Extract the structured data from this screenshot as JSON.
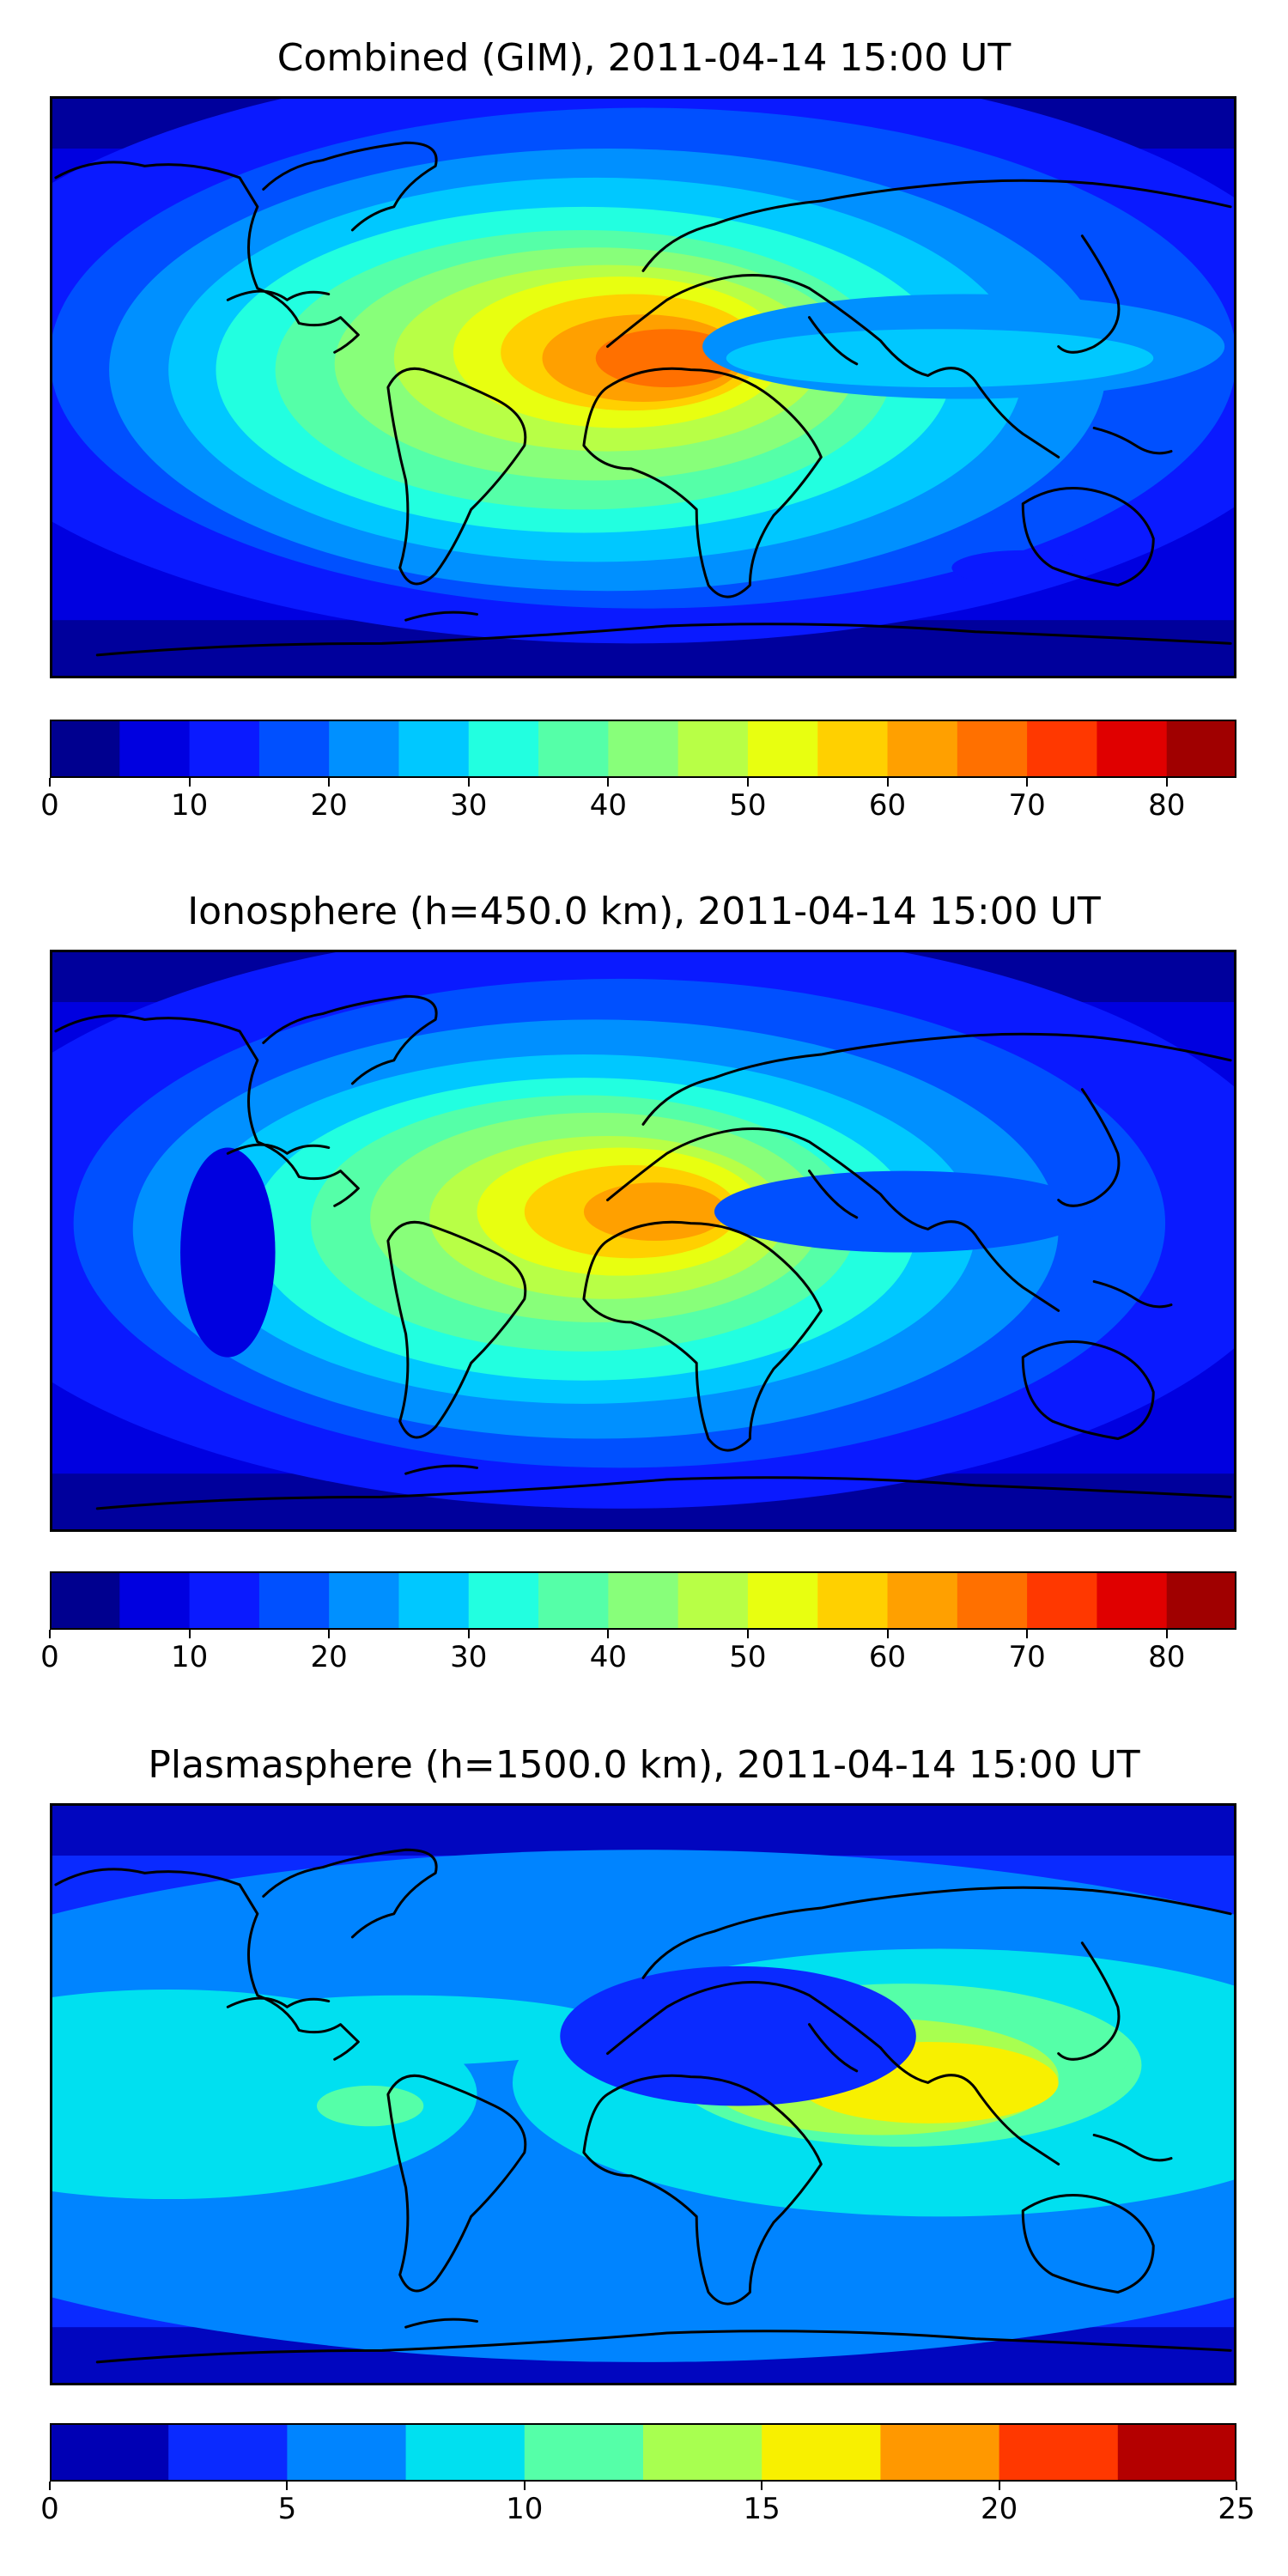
{
  "chart_data": [
    {
      "type": "heatmap",
      "title": "Combined (GIM), 2011-04-14 15:00 UT",
      "colorbar": {
        "min": 0,
        "max": 85,
        "step": 5,
        "tick_labels": [
          "0",
          "10",
          "20",
          "30",
          "40",
          "50",
          "60",
          "70",
          "80"
        ],
        "tick_values": [
          0,
          10,
          20,
          30,
          40,
          50,
          60,
          70,
          80
        ],
        "colors": [
          "#00008f",
          "#0000e0",
          "#0a1aff",
          "#0050ff",
          "#0090ff",
          "#00c8ff",
          "#22ffe0",
          "#55ffa8",
          "#88ff7a",
          "#b8ff46",
          "#e8ff10",
          "#ffd000",
          "#ffa000",
          "#ff7000",
          "#ff3800",
          "#e00000",
          "#a00000"
        ]
      },
      "background_level": 1,
      "blobs": [
        {
          "cx": 0.49,
          "cy": 0.44,
          "rx": 0.6,
          "ry": 0.5,
          "level": 2
        },
        {
          "cx": 0.5,
          "cy": 0.45,
          "rx": 0.5,
          "ry": 0.43,
          "level": 3
        },
        {
          "cx": 0.47,
          "cy": 0.47,
          "rx": 0.42,
          "ry": 0.38,
          "level": 4
        },
        {
          "cx": 0.46,
          "cy": 0.47,
          "rx": 0.36,
          "ry": 0.33,
          "level": 5
        },
        {
          "cx": 0.45,
          "cy": 0.47,
          "rx": 0.31,
          "ry": 0.28,
          "level": 6
        },
        {
          "cx": 0.45,
          "cy": 0.47,
          "rx": 0.26,
          "ry": 0.24,
          "level": 7
        },
        {
          "cx": 0.46,
          "cy": 0.46,
          "rx": 0.22,
          "ry": 0.2,
          "level": 8
        },
        {
          "cx": 0.47,
          "cy": 0.45,
          "rx": 0.18,
          "ry": 0.16,
          "level": 9
        },
        {
          "cx": 0.48,
          "cy": 0.44,
          "rx": 0.14,
          "ry": 0.13,
          "level": 10
        },
        {
          "cx": 0.49,
          "cy": 0.44,
          "rx": 0.11,
          "ry": 0.1,
          "level": 11
        },
        {
          "cx": 0.5,
          "cy": 0.45,
          "rx": 0.085,
          "ry": 0.075,
          "level": 12
        },
        {
          "cx": 0.52,
          "cy": 0.45,
          "rx": 0.06,
          "ry": 0.05,
          "level": 13
        },
        {
          "cx": 0.77,
          "cy": 0.43,
          "rx": 0.22,
          "ry": 0.09,
          "level": 4
        },
        {
          "cx": 0.75,
          "cy": 0.45,
          "rx": 0.18,
          "ry": 0.05,
          "level": 5
        },
        {
          "cx": 0.82,
          "cy": 0.81,
          "rx": 0.06,
          "ry": 0.03,
          "level": 2
        }
      ]
    },
    {
      "type": "heatmap",
      "title": "Ionosphere  (h=450.0 km), 2011-04-14 15:00 UT",
      "colorbar": {
        "min": 0,
        "max": 85,
        "step": 5,
        "tick_labels": [
          "0",
          "10",
          "20",
          "30",
          "40",
          "50",
          "60",
          "70",
          "80"
        ],
        "tick_values": [
          0,
          10,
          20,
          30,
          40,
          50,
          60,
          70,
          80
        ],
        "colors": [
          "#00008f",
          "#0000e0",
          "#0a1aff",
          "#0050ff",
          "#0090ff",
          "#00c8ff",
          "#22ffe0",
          "#55ffa8",
          "#88ff7a",
          "#b8ff46",
          "#e8ff10",
          "#ffd000",
          "#ffa000",
          "#ff7000",
          "#ff3800",
          "#e00000",
          "#a00000"
        ]
      },
      "background_level": 1,
      "blobs": [
        {
          "cx": 0.48,
          "cy": 0.46,
          "rx": 0.58,
          "ry": 0.5,
          "level": 2
        },
        {
          "cx": 0.48,
          "cy": 0.47,
          "rx": 0.46,
          "ry": 0.42,
          "level": 3
        },
        {
          "cx": 0.46,
          "cy": 0.48,
          "rx": 0.39,
          "ry": 0.36,
          "level": 4
        },
        {
          "cx": 0.45,
          "cy": 0.48,
          "rx": 0.33,
          "ry": 0.3,
          "level": 5
        },
        {
          "cx": 0.45,
          "cy": 0.48,
          "rx": 0.28,
          "ry": 0.26,
          "level": 6
        },
        {
          "cx": 0.45,
          "cy": 0.47,
          "rx": 0.23,
          "ry": 0.22,
          "level": 7
        },
        {
          "cx": 0.46,
          "cy": 0.46,
          "rx": 0.19,
          "ry": 0.18,
          "level": 8
        },
        {
          "cx": 0.47,
          "cy": 0.46,
          "rx": 0.15,
          "ry": 0.14,
          "level": 9
        },
        {
          "cx": 0.48,
          "cy": 0.45,
          "rx": 0.12,
          "ry": 0.11,
          "level": 10
        },
        {
          "cx": 0.49,
          "cy": 0.45,
          "rx": 0.09,
          "ry": 0.08,
          "level": 11
        },
        {
          "cx": 0.51,
          "cy": 0.45,
          "rx": 0.06,
          "ry": 0.05,
          "level": 12
        },
        {
          "cx": 0.72,
          "cy": 0.45,
          "rx": 0.16,
          "ry": 0.07,
          "level": 3
        },
        {
          "cx": 0.15,
          "cy": 0.52,
          "rx": 0.04,
          "ry": 0.18,
          "level": 1
        }
      ]
    },
    {
      "type": "heatmap",
      "title": "Plasmasphere (h=1500.0 km), 2011-04-14 15:00 UT",
      "colorbar": {
        "min": 0,
        "max": 25,
        "step": 2.5,
        "tick_labels": [
          "0",
          "5",
          "10",
          "15",
          "20",
          "25"
        ],
        "tick_values": [
          0,
          5,
          10,
          15,
          20,
          25
        ],
        "colors": [
          "#0000b4",
          "#0a2aff",
          "#0084ff",
          "#00e0f0",
          "#55ffa8",
          "#a8ff50",
          "#f8f000",
          "#ff9800",
          "#ff3800",
          "#b40000"
        ]
      },
      "background_level": 1,
      "blobs": [
        {
          "cx": 0.5,
          "cy": 0.52,
          "rx": 0.75,
          "ry": 0.44,
          "level": 2
        },
        {
          "cx": 0.1,
          "cy": 0.5,
          "rx": 0.26,
          "ry": 0.18,
          "level": 3
        },
        {
          "cx": 0.75,
          "cy": 0.48,
          "rx": 0.36,
          "ry": 0.23,
          "level": 3
        },
        {
          "cx": 0.3,
          "cy": 0.39,
          "rx": 0.18,
          "ry": 0.06,
          "level": 3
        },
        {
          "cx": 0.72,
          "cy": 0.45,
          "rx": 0.2,
          "ry": 0.14,
          "level": 4
        },
        {
          "cx": 0.84,
          "cy": 0.43,
          "rx": 0.07,
          "ry": 0.07,
          "level": 4
        },
        {
          "cx": 0.7,
          "cy": 0.47,
          "rx": 0.15,
          "ry": 0.1,
          "level": 5
        },
        {
          "cx": 0.74,
          "cy": 0.48,
          "rx": 0.11,
          "ry": 0.07,
          "level": 6
        },
        {
          "cx": 0.27,
          "cy": 0.52,
          "rx": 0.045,
          "ry": 0.035,
          "level": 4
        },
        {
          "cx": 0.48,
          "cy": 0.73,
          "rx": 0.045,
          "ry": 0.045,
          "level": 2
        },
        {
          "cx": 0.58,
          "cy": 0.4,
          "rx": 0.15,
          "ry": 0.12,
          "level": 1
        }
      ]
    }
  ]
}
